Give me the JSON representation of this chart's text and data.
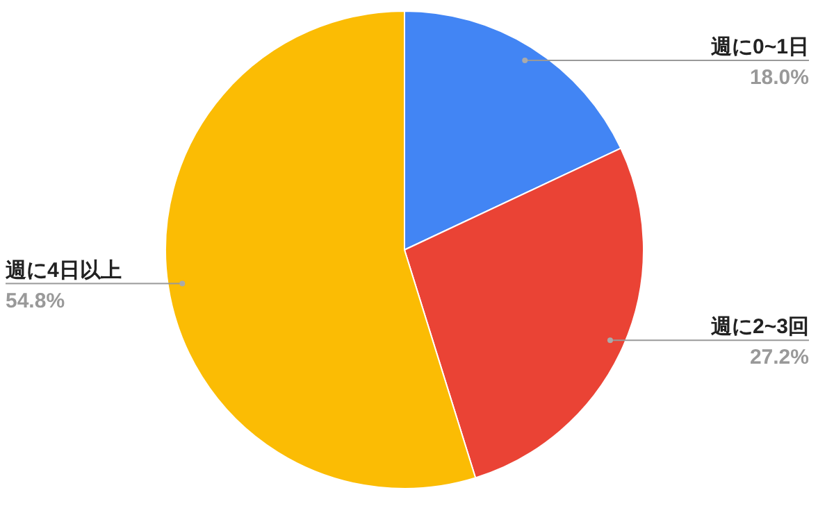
{
  "chart_data": {
    "type": "pie",
    "categories": [
      "週に0~1日",
      "週に2~3回",
      "週に4日以上"
    ],
    "values": [
      18.0,
      27.2,
      54.8
    ],
    "colors": [
      "#4285f4",
      "#ea4335",
      "#fbbc04"
    ],
    "value_labels": [
      "18.0%",
      "27.2%",
      "54.8%"
    ]
  }
}
